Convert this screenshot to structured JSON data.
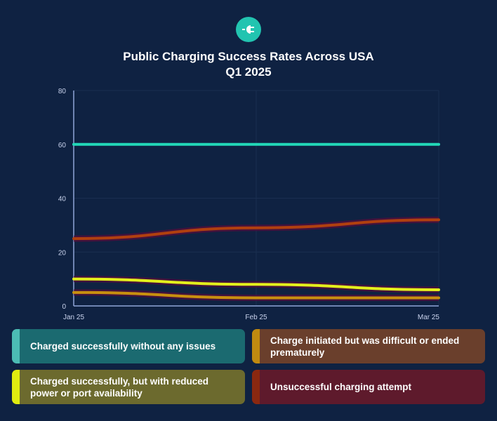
{
  "header": {
    "logo_icon": "plug-icon",
    "title_line1": "Public Charging Success Rates Across USA",
    "title_line2": "Q1 2025"
  },
  "chart_data": {
    "type": "line",
    "title": "Public Charging Success Rates Across USA Q1 2025",
    "categories": [
      "Jan 25",
      "Feb 25",
      "Mar 25"
    ],
    "ylim": [
      0,
      80
    ],
    "yticks": [
      "0",
      "20",
      "40",
      "60",
      "80"
    ],
    "grid": true,
    "legend_placement": "bottom",
    "series": [
      {
        "name": "Charged successfully without any issues",
        "values": [
          60,
          60,
          60
        ],
        "color": "#22d8b8",
        "legend_bg": "#1b6a70",
        "legend_bar": "#4cbcb4"
      },
      {
        "name": "Charge initiated but was difficult or ended prematurely",
        "values": [
          5,
          3,
          3
        ],
        "color": "#c8900f",
        "legend_bg": "#6a3f2c",
        "legend_bar": "#c08a10"
      },
      {
        "name": "Charged successfully, but with reduced power or port availability",
        "values": [
          10,
          8,
          6
        ],
        "color": "#e4f01c",
        "legend_bg": "#6c6a2e",
        "legend_bar": "#e0ec10"
      },
      {
        "name": "Unsuccessful charging attempt",
        "values": [
          25,
          29,
          32
        ],
        "color": "#b0400f",
        "legend_bg": "#5e1a2c",
        "legend_bar": "#8a2810"
      }
    ]
  }
}
